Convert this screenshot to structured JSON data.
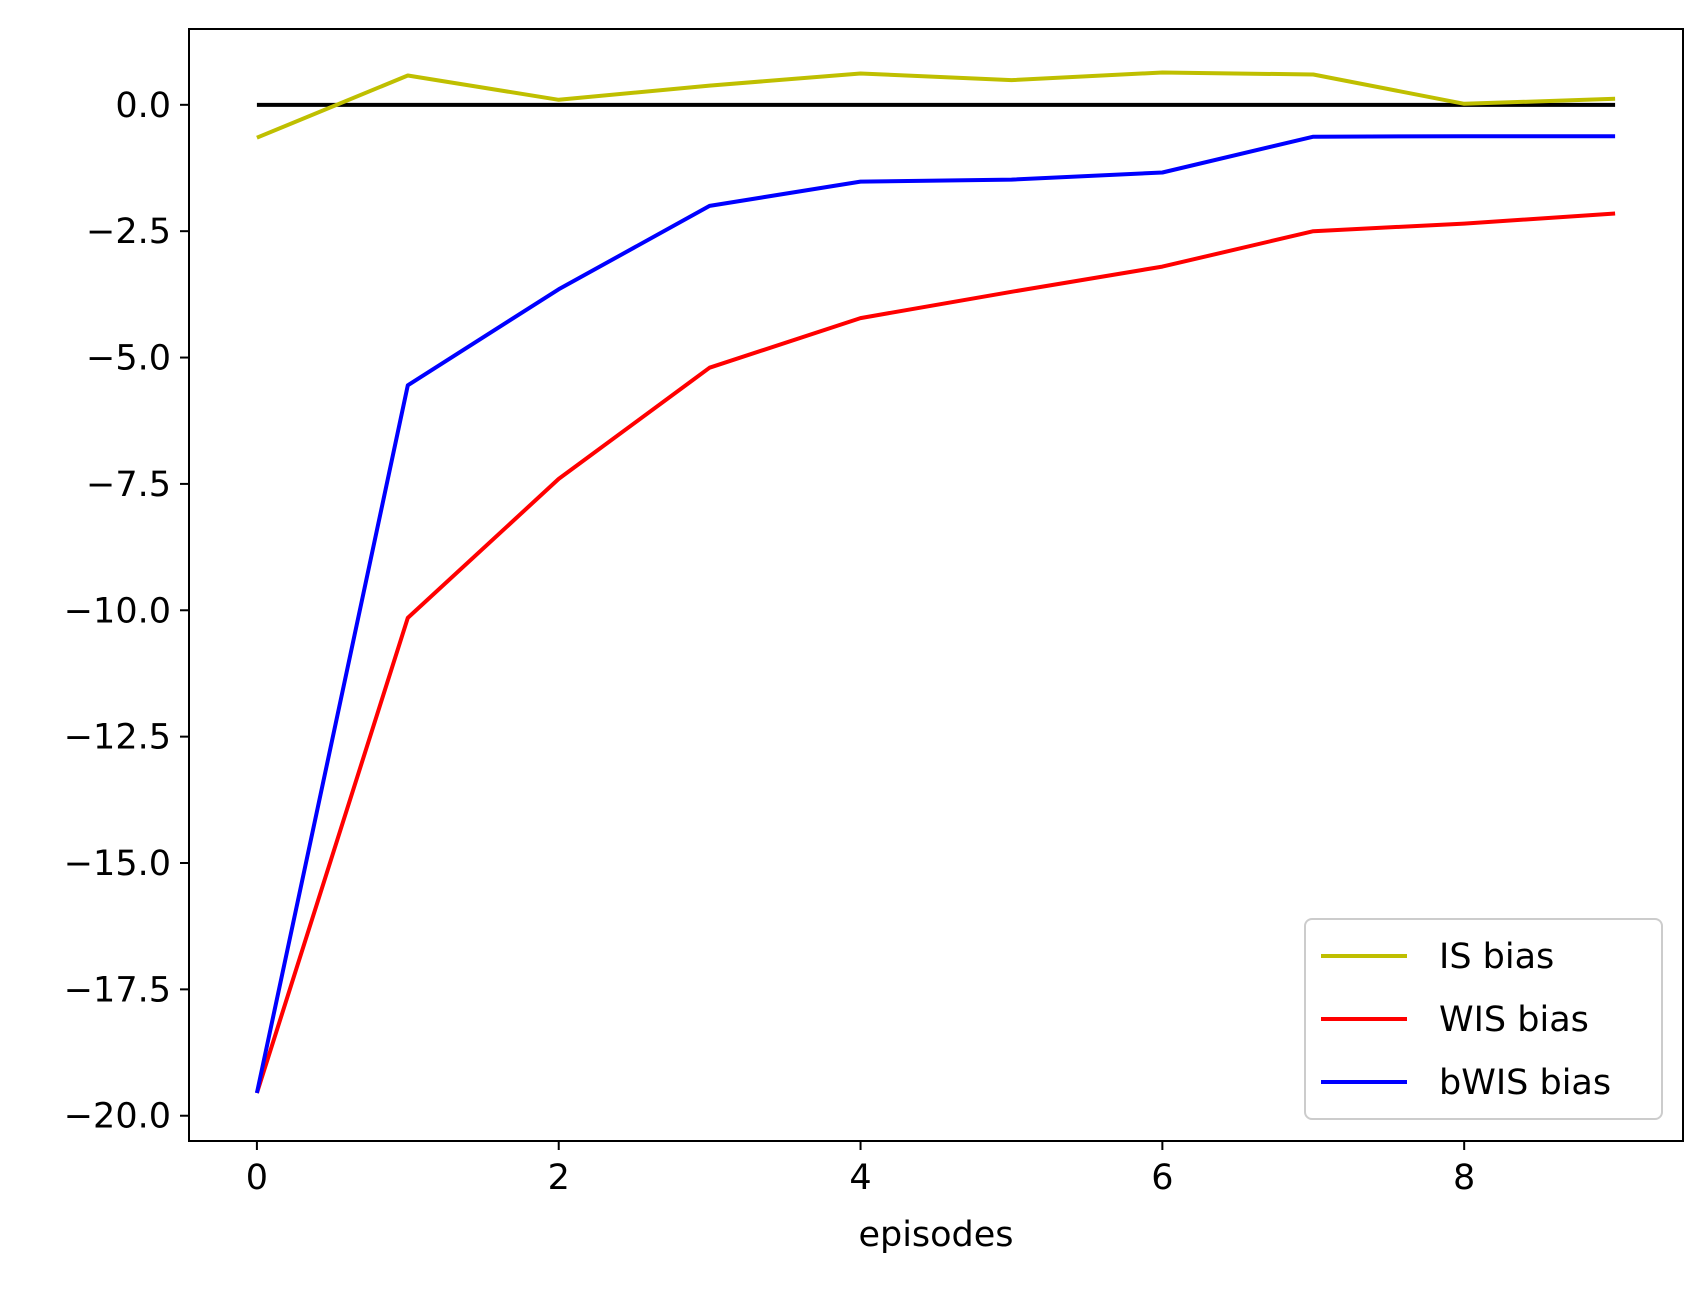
{
  "chart_data": {
    "type": "line",
    "xlabel": "episodes",
    "ylabel": "",
    "xlim": [
      -0.45,
      9.45
    ],
    "ylim": [
      -20.5,
      1.5
    ],
    "x_ticks": [
      0,
      2,
      4,
      6,
      8
    ],
    "y_ticks": [
      0.0,
      -2.5,
      -5.0,
      -7.5,
      -10.0,
      -12.5,
      -15.0,
      -17.5,
      -20.0
    ],
    "x_tick_labels": [
      "0",
      "2",
      "4",
      "6",
      "8"
    ],
    "y_tick_labels": [
      "0.0",
      "−2.5",
      "−5.0",
      "−7.5",
      "−10.0",
      "−12.5",
      "−15.0",
      "−17.5",
      "−20.0"
    ],
    "grid": false,
    "legend_position": "lower-right",
    "x": [
      0,
      1,
      2,
      3,
      4,
      5,
      6,
      7,
      8,
      9
    ],
    "reference_line": {
      "y": 0.0,
      "x_range": [
        0,
        9
      ],
      "color": "#000000"
    },
    "series": [
      {
        "name": "IS bias",
        "color": "#bfbf00",
        "values": [
          -0.65,
          0.58,
          0.1,
          0.38,
          0.62,
          0.49,
          0.64,
          0.6,
          0.02,
          0.12
        ]
      },
      {
        "name": "WIS bias",
        "color": "#ff0000",
        "values": [
          -19.55,
          -10.15,
          -7.4,
          -5.2,
          -4.22,
          -3.7,
          -3.2,
          -2.5,
          -2.35,
          -2.15
        ]
      },
      {
        "name": "bWIS bias",
        "color": "#0000ff",
        "values": [
          -19.55,
          -5.55,
          -3.65,
          -2.0,
          -1.52,
          -1.48,
          -1.34,
          -0.63,
          -0.62,
          -0.62
        ]
      }
    ]
  }
}
